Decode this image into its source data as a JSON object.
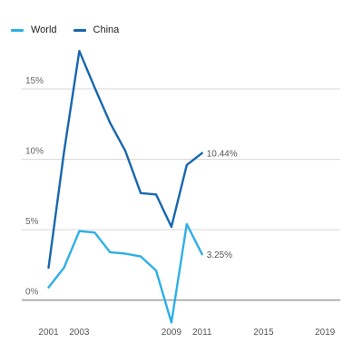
{
  "chart_data": {
    "type": "line",
    "title": "",
    "xlabel": "",
    "ylabel": "",
    "x_ticks": [
      "2001",
      "2003",
      "2009",
      "2011",
      "2015",
      "2019"
    ],
    "y_ticks": [
      "0%",
      "5%",
      "10%",
      "15%"
    ],
    "xlim": [
      2000.2,
      2020.0
    ],
    "ylim": [
      -1.7,
      19.0
    ],
    "grid": "horizontal",
    "legend_position": "top-left",
    "series": [
      {
        "name": "World",
        "color": "#2DB0E6",
        "x": [
          2001,
          2002,
          2003,
          2004,
          2005,
          2006,
          2007,
          2008,
          2009,
          2010,
          2011
        ],
        "values": [
          0.9,
          2.3,
          4.9,
          4.8,
          3.4,
          3.3,
          3.1,
          2.1,
          -1.6,
          5.4,
          3.25
        ],
        "end_label": "3.25%"
      },
      {
        "name": "China",
        "color": "#1767AF",
        "x": [
          2001,
          2002,
          2003,
          2004,
          2005,
          2006,
          2007,
          2008,
          2009,
          2010,
          2011
        ],
        "values": [
          2.3,
          10.5,
          17.7,
          15.1,
          12.6,
          10.6,
          7.6,
          7.5,
          5.2,
          9.6,
          10.44
        ],
        "end_label": "10.44%"
      }
    ]
  }
}
